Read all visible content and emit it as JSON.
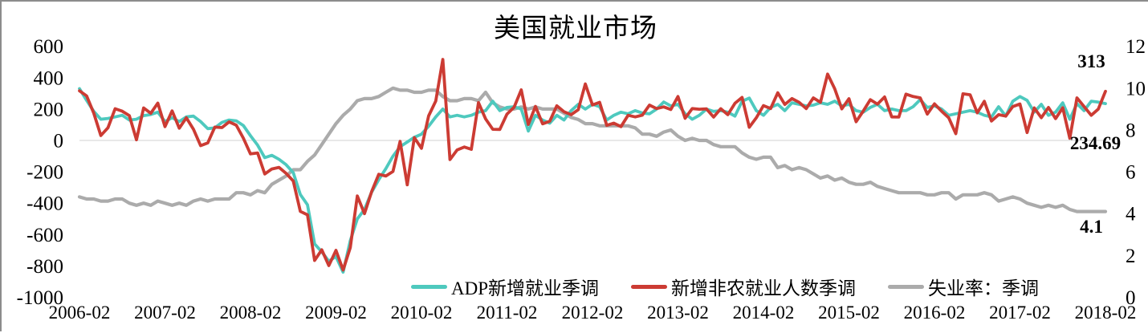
{
  "chart": {
    "title": "美国就业市场"
  },
  "chart_data": {
    "type": "line",
    "title": "美国就业市场",
    "x_frequency": "monthly",
    "x_start": "2006-02",
    "x_end": "2018-02",
    "x_tick_labels": [
      "2006-02",
      "2007-02",
      "2008-02",
      "2009-02",
      "2010-02",
      "2011-02",
      "2012-02",
      "2013-02",
      "2014-02",
      "2015-02",
      "2016-02",
      "2017-02",
      "2018-02"
    ],
    "left_axis": {
      "ticks": [
        600,
        400,
        200,
        0,
        -200,
        -400,
        -600,
        -800,
        -1000
      ],
      "range": [
        -1000,
        600
      ]
    },
    "right_axis": {
      "ticks": [
        12,
        10,
        8,
        6,
        4,
        2,
        0
      ],
      "range": [
        0,
        12
      ]
    },
    "gridlines": {
      "horizontal_at_left_value": 0,
      "color": "#d9d9d9"
    },
    "legend_position": "bottom",
    "annotations": {
      "nfp_last": "313",
      "adp_last": "234.69",
      "unemployment_last": "4.1"
    },
    "series": [
      {
        "name": "ADP新增就业季调",
        "axis": "left",
        "color": "#4EC9BE",
        "values": [
          330,
          255,
          185,
          135,
          140,
          150,
          160,
          130,
          135,
          158,
          165,
          180,
          120,
          145,
          120,
          150,
          155,
          120,
          75,
          80,
          115,
          130,
          125,
          95,
          30,
          -30,
          -110,
          -95,
          -120,
          -155,
          -205,
          -345,
          -410,
          -660,
          -710,
          -770,
          -740,
          -840,
          -640,
          -500,
          -440,
          -330,
          -250,
          -180,
          -100,
          -40,
          -10,
          20,
          40,
          90,
          150,
          200,
          150,
          160,
          150,
          160,
          180,
          190,
          250,
          190,
          210,
          215,
          200,
          60,
          160,
          130,
          110,
          160,
          130,
          190,
          230,
          200,
          230,
          215,
          130,
          160,
          180,
          170,
          190,
          175,
          170,
          200,
          245,
          220,
          230,
          170,
          135,
          160,
          200,
          185,
          190,
          180,
          155,
          250,
          270,
          190,
          160,
          210,
          230,
          190,
          240,
          230,
          220,
          225,
          240,
          230,
          250,
          220,
          230,
          190,
          180,
          210,
          230,
          190,
          200,
          190,
          190,
          215,
          260,
          210,
          220,
          200,
          160,
          170,
          180,
          190,
          180,
          160,
          150,
          215,
          155,
          250,
          280,
          255,
          180,
          230,
          160,
          180,
          240,
          135,
          235,
          190,
          250,
          244,
          234.69
        ]
      },
      {
        "name": "新增非农就业人数季调",
        "axis": "left",
        "color": "#CC3B33",
        "values": [
          316,
          284,
          174,
          31,
          81,
          202,
          186,
          158,
          4,
          207,
          173,
          238,
          88,
          188,
          78,
          144,
          71,
          -33,
          -16,
          85,
          82,
          118,
          97,
          15,
          -86,
          -80,
          -214,
          -182,
          -172,
          -210,
          -259,
          -452,
          -474,
          -765,
          -697,
          -798,
          -701,
          -826,
          -684,
          -354,
          -467,
          -327,
          -216,
          -227,
          -198,
          -6,
          -283,
          18,
          -50,
          156,
          251,
          516,
          -122,
          -61,
          -42,
          -57,
          241,
          137,
          71,
          70,
          168,
          212,
          322,
          102,
          217,
          106,
          122,
          221,
          183,
          164,
          196,
          360,
          226,
          243,
          96,
          110,
          88,
          160,
          150,
          161,
          225,
          203,
          214,
          197,
          280,
          141,
          203,
          199,
          201,
          149,
          202,
          164,
          237,
          274,
          84,
          144,
          222,
          203,
          304,
          229,
          267,
          243,
          203,
          271,
          243,
          423,
          329,
          201,
          266,
          119,
          187,
          260,
          231,
          277,
          150,
          149,
          295,
          280,
          271,
          168,
          233,
          186,
          144,
          43,
          297,
          291,
          176,
          249,
          124,
          164,
          155,
          216,
          232,
          50,
          207,
          145,
          210,
          139,
          208,
          14,
          271,
          216,
          160,
          200,
          313
        ]
      },
      {
        "name": "失业率：季调",
        "axis": "right",
        "color": "#ABABAB",
        "values": [
          4.8,
          4.7,
          4.7,
          4.6,
          4.6,
          4.7,
          4.7,
          4.5,
          4.4,
          4.5,
          4.4,
          4.6,
          4.5,
          4.4,
          4.5,
          4.4,
          4.6,
          4.7,
          4.6,
          4.7,
          4.7,
          4.7,
          5.0,
          5.0,
          4.9,
          5.1,
          5.0,
          5.4,
          5.6,
          5.8,
          6.1,
          6.1,
          6.5,
          6.8,
          7.3,
          7.8,
          8.3,
          8.7,
          9.0,
          9.4,
          9.5,
          9.5,
          9.6,
          9.8,
          10.0,
          9.9,
          9.9,
          9.8,
          9.8,
          9.9,
          9.9,
          9.6,
          9.4,
          9.4,
          9.5,
          9.5,
          9.4,
          9.8,
          9.3,
          9.1,
          9.0,
          9.0,
          9.1,
          9.0,
          9.1,
          9.0,
          9.0,
          9.0,
          8.8,
          8.6,
          8.5,
          8.3,
          8.3,
          8.2,
          8.2,
          8.2,
          8.2,
          8.2,
          8.1,
          7.8,
          7.8,
          7.7,
          7.9,
          8.0,
          7.7,
          7.5,
          7.6,
          7.5,
          7.5,
          7.3,
          7.2,
          7.2,
          7.2,
          6.9,
          6.7,
          6.6,
          6.7,
          6.7,
          6.2,
          6.3,
          6.1,
          6.2,
          6.1,
          5.9,
          5.7,
          5.8,
          5.6,
          5.7,
          5.5,
          5.4,
          5.4,
          5.5,
          5.3,
          5.2,
          5.1,
          5.0,
          5.0,
          5.0,
          5.0,
          4.9,
          4.9,
          5.0,
          5.0,
          4.7,
          4.9,
          4.9,
          4.9,
          5.0,
          4.9,
          4.6,
          4.7,
          4.8,
          4.7,
          4.5,
          4.4,
          4.3,
          4.4,
          4.3,
          4.4,
          4.2,
          4.1,
          4.1,
          4.1,
          4.1,
          4.1
        ]
      }
    ]
  }
}
